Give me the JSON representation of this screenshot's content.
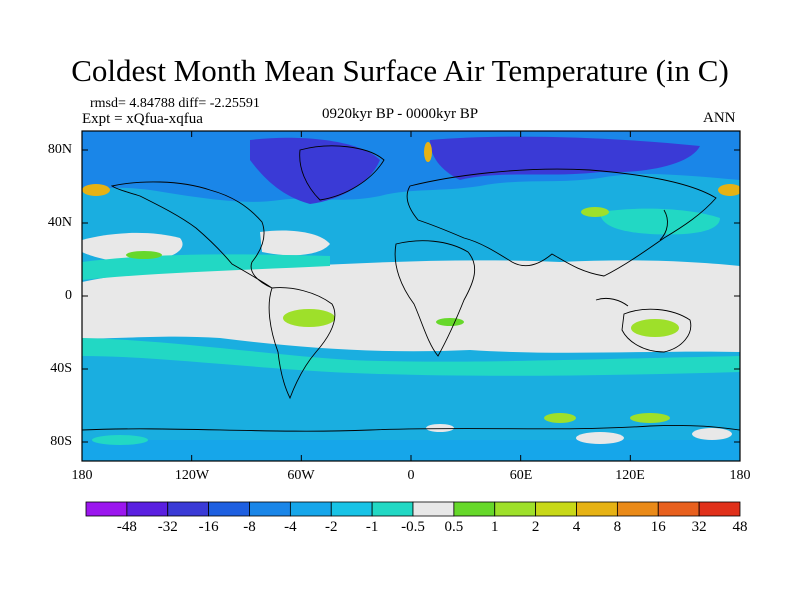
{
  "title": "Coldest Month Mean Surface Air Temperature (in C)",
  "stats": {
    "rmsd_diff": "rmsd= 4.84788 diff= -2.25591",
    "expt": "Expt = xQfua-xqfua",
    "period": "0920kyr BP - 0000kyr BP",
    "season": "ANN"
  },
  "axes": {
    "y_ticks": [
      "80N",
      "40N",
      "0",
      "40S",
      "80S"
    ],
    "x_ticks": [
      "180",
      "120W",
      "60W",
      "0",
      "60E",
      "120E",
      "180"
    ]
  },
  "legend": {
    "labels": [
      "-48",
      "-32",
      "-16",
      "-8",
      "-4",
      "-2",
      "-1",
      "-0.5",
      "0.5",
      "1",
      "2",
      "4",
      "8",
      "16",
      "32",
      "48"
    ],
    "colors": [
      "#9b16ee",
      "#5a1fe0",
      "#3a3ad6",
      "#1e5fe0",
      "#1a86e8",
      "#16a6ea",
      "#18c3e6",
      "#22d8c4",
      "#e8e8e8",
      "#66d82a",
      "#9ee02a",
      "#c8d818",
      "#e6b214",
      "#ea8a18",
      "#e8601e",
      "#e0301a"
    ]
  }
}
